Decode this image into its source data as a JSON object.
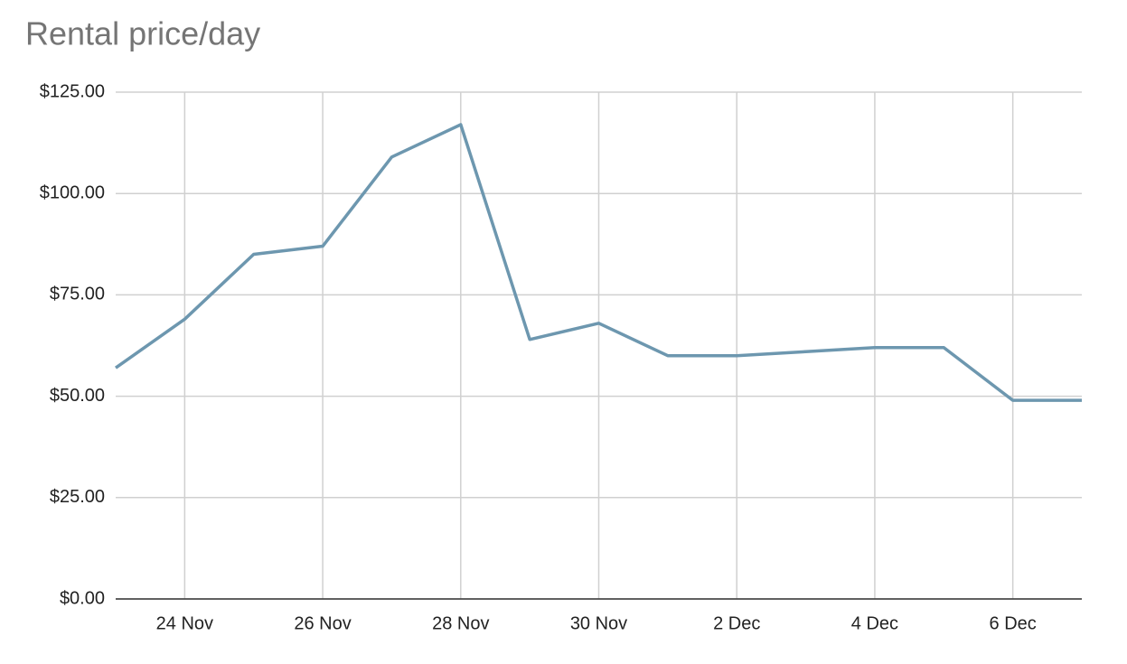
{
  "chart_data": {
    "type": "line",
    "title": "Rental price/day",
    "categories": [
      null,
      "24 Nov",
      null,
      "26 Nov",
      null,
      "28 Nov",
      null,
      "30 Nov",
      null,
      "2 Dec",
      null,
      "4 Dec",
      null,
      "6 Dec",
      null
    ],
    "values": [
      57,
      69,
      85,
      87,
      109,
      117,
      64,
      68,
      60,
      60,
      61,
      62,
      62,
      49,
      49
    ],
    "color": "#6d97af",
    "ylim": [
      0,
      125
    ],
    "yticks": [
      {
        "value": 0,
        "label": "$0.00"
      },
      {
        "value": 25,
        "label": "$25.00"
      },
      {
        "value": 50,
        "label": "$50.00"
      },
      {
        "value": 75,
        "label": "$75.00"
      },
      {
        "value": 100,
        "label": "$100.00"
      },
      {
        "value": 125,
        "label": "$125.00"
      }
    ],
    "grid": true
  }
}
